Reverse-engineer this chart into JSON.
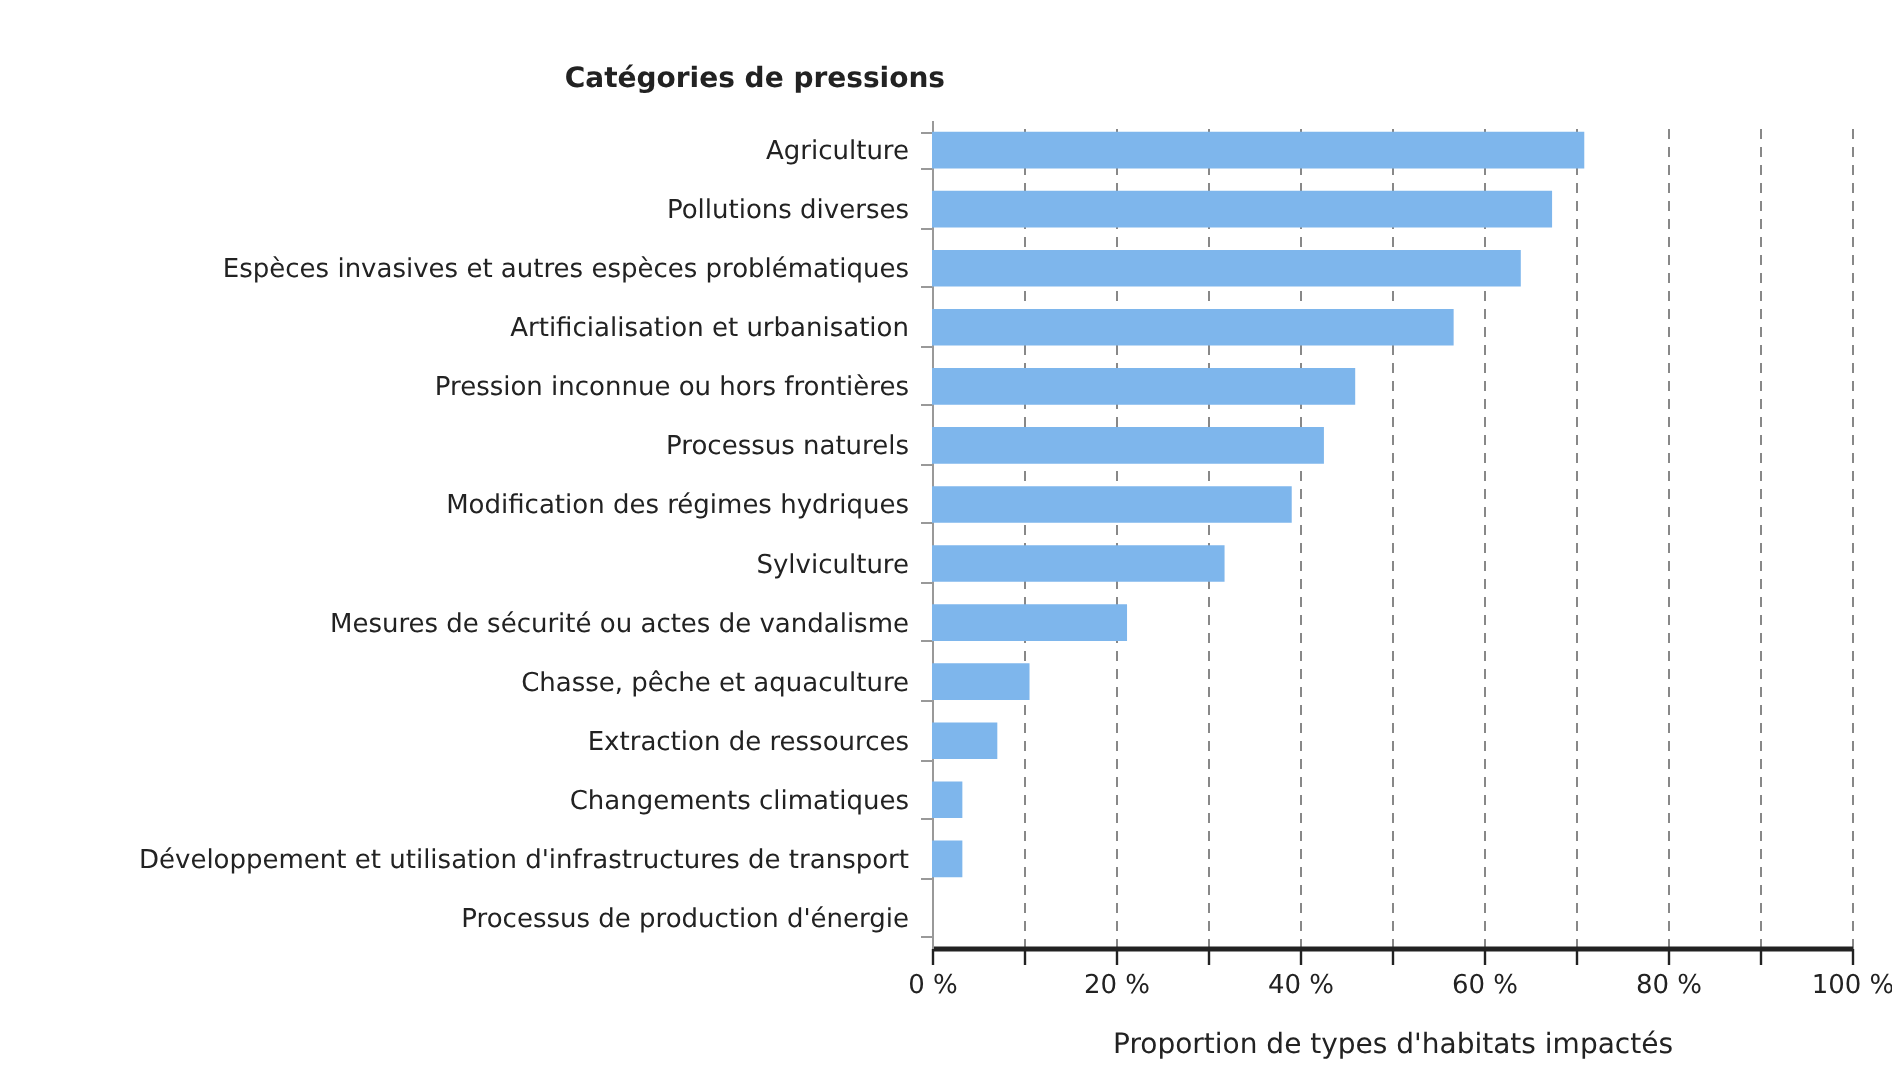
{
  "chart_data": {
    "type": "bar",
    "orientation": "horizontal",
    "ylabel": "Catégories de pressions",
    "xlabel": "Proportion de types d'habitats impactés",
    "categories": [
      "Agriculture",
      "Pollutions diverses",
      "Espèces invasives et autres espèces problématiques",
      "Artificialisation et urbanisation",
      "Pression inconnue ou hors frontières",
      "Processus naturels",
      "Modification des régimes hydriques",
      "Sylviculture",
      "Mesures de sécurité ou actes de vandalisme",
      "Chasse, pêche et aquaculture",
      "Extraction de ressources",
      "Changements climatiques",
      "Développement et utilisation d'infrastructures de transport",
      "Processus de production d'énergie"
    ],
    "values": [
      70.9,
      67.4,
      64.0,
      56.7,
      46.0,
      42.6,
      39.1,
      31.8,
      21.2,
      10.6,
      7.1,
      3.3,
      3.3,
      0
    ],
    "color": "#7eb6ec",
    "xlim": [
      0,
      100
    ],
    "xticks": [
      {
        "value": 0,
        "label": "0 %"
      },
      {
        "value": 10,
        "label": null
      },
      {
        "value": 20,
        "label": "20 %"
      },
      {
        "value": 30,
        "label": null
      },
      {
        "value": 40,
        "label": "40 %"
      },
      {
        "value": 50,
        "label": null
      },
      {
        "value": 60,
        "label": "60 %"
      },
      {
        "value": 70,
        "label": null
      },
      {
        "value": 80,
        "label": "80 %"
      },
      {
        "value": 90,
        "label": null
      },
      {
        "value": 100,
        "label": "100 %"
      }
    ],
    "grid": "x"
  }
}
